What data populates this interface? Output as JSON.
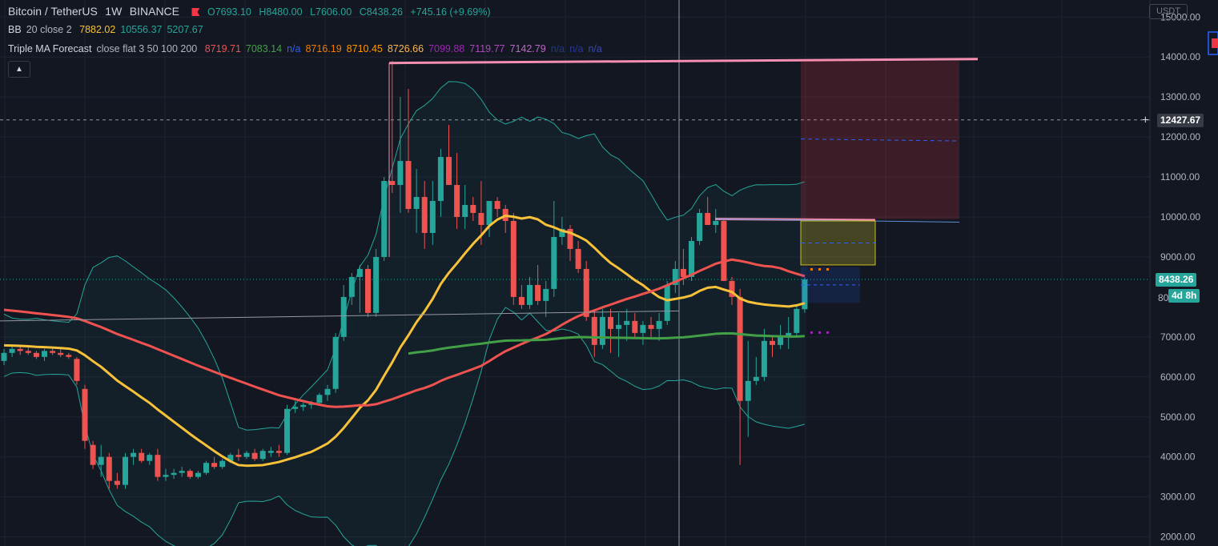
{
  "header": {
    "symbol": "Bitcoin / TetherUS",
    "interval": "1W",
    "exchange": "BINANCE",
    "open": "O7693.10",
    "high": "H8480.00",
    "low": "L7606.00",
    "close": "C8438.26",
    "change": "+745.16 (+9.69%)"
  },
  "indicators": {
    "bb": {
      "label": "BB",
      "params": "20 close 2",
      "values": [
        {
          "text": "7882.02",
          "color": "#f7c13a"
        },
        {
          "text": "10556.37",
          "color": "#26a69a"
        },
        {
          "text": "5207.67",
          "color": "#26a69a"
        }
      ]
    },
    "triple_ma": {
      "label": "Triple MA Forecast",
      "params": "close flat 3 50 100 200",
      "values": [
        {
          "text": "8719.71",
          "color": "#ef5350"
        },
        {
          "text": "7083.14",
          "color": "#43a047"
        },
        {
          "text": "n/a",
          "color": "#2962ff"
        },
        {
          "text": "8716.19",
          "color": "#f57c00"
        },
        {
          "text": "8710.45",
          "color": "#ff9800"
        },
        {
          "text": "8726.66",
          "color": "#ffb74d"
        },
        {
          "text": "7099.88",
          "color": "#9c27b0"
        },
        {
          "text": "7119.77",
          "color": "#ab47bc"
        },
        {
          "text": "7142.79",
          "color": "#ba68c8"
        },
        {
          "text": "n/a",
          "color": "#1e3a8a"
        },
        {
          "text": "n/a",
          "color": "#283593"
        },
        {
          "text": "n/a",
          "color": "#3949ab"
        }
      ]
    }
  },
  "collapse_icon": "chevron-up-icon",
  "price_axis": {
    "unit": "USDT",
    "ticks": [
      "15000.00",
      "14000.00",
      "13000.00",
      "12000.00",
      "11000.00",
      "10000.00",
      "9000.00",
      "7000.00",
      "6000.00",
      "5000.00",
      "4000.00",
      "3000.00",
      "2000.00"
    ],
    "crosshair_price": "12427.67",
    "last_price": "8438.26",
    "countdown": "4d 8h",
    "partial_tick": "80"
  },
  "colors": {
    "bg": "#131722",
    "up": "#26a69a",
    "down": "#ef5350",
    "bb_basis": "#f7c13a",
    "ma1": "#ef5350",
    "ma2": "#43a047",
    "trendline": "#f48fb1"
  },
  "chart_data": {
    "type": "candlestick",
    "interval": "1W",
    "y_axis_range": [
      2000,
      15000
    ],
    "candles": [
      [
        6400,
        6700,
        6300,
        6600
      ],
      [
        6600,
        6800,
        6500,
        6700
      ],
      [
        6700,
        6800,
        6550,
        6650
      ],
      [
        6650,
        6750,
        6550,
        6600
      ],
      [
        6600,
        6650,
        6450,
        6500
      ],
      [
        6500,
        6700,
        6400,
        6650
      ],
      [
        6650,
        6750,
        6550,
        6600
      ],
      [
        6600,
        6700,
        6500,
        6550
      ],
      [
        6550,
        6600,
        6450,
        6500
      ],
      [
        6450,
        6500,
        5800,
        5900
      ],
      [
        5700,
        5800,
        4200,
        4400
      ],
      [
        4300,
        4400,
        3700,
        3800
      ],
      [
        3800,
        4300,
        3500,
        4000
      ],
      [
        4000,
        4100,
        3200,
        3400
      ],
      [
        3400,
        3600,
        3200,
        3300
      ],
      [
        3300,
        4100,
        3200,
        4000
      ],
      [
        4000,
        4200,
        3800,
        4100
      ],
      [
        4100,
        4200,
        3850,
        3900
      ],
      [
        3900,
        4100,
        3800,
        4050
      ],
      [
        4050,
        4200,
        3400,
        3500
      ],
      [
        3500,
        3700,
        3400,
        3550
      ],
      [
        3550,
        3700,
        3450,
        3600
      ],
      [
        3600,
        3750,
        3500,
        3650
      ],
      [
        3650,
        3700,
        3450,
        3500
      ],
      [
        3500,
        3650,
        3450,
        3600
      ],
      [
        3600,
        3900,
        3550,
        3850
      ],
      [
        3850,
        4000,
        3700,
        3750
      ],
      [
        3750,
        3950,
        3700,
        3900
      ],
      [
        3900,
        4100,
        3850,
        4050
      ],
      [
        4050,
        4200,
        3900,
        4000
      ],
      [
        4000,
        4150,
        3950,
        4100
      ],
      [
        4100,
        4200,
        3900,
        3950
      ],
      [
        3950,
        4200,
        3900,
        4150
      ],
      [
        4100,
        4250,
        4000,
        4150
      ],
      [
        4150,
        4300,
        4000,
        4100
      ],
      [
        4100,
        5300,
        4050,
        5200
      ],
      [
        5200,
        5400,
        5100,
        5250
      ],
      [
        5250,
        5350,
        5150,
        5300
      ],
      [
        5300,
        5400,
        5200,
        5350
      ],
      [
        5350,
        5600,
        5300,
        5550
      ],
      [
        5550,
        5800,
        5400,
        5700
      ],
      [
        5700,
        7100,
        5600,
        7000
      ],
      [
        7000,
        8300,
        6900,
        8000
      ],
      [
        8000,
        8600,
        7800,
        8500
      ],
      [
        8500,
        8800,
        7600,
        8700
      ],
      [
        8700,
        8800,
        7500,
        7600
      ],
      [
        7600,
        9200,
        7500,
        9000
      ],
      [
        9000,
        11000,
        8900,
        10900
      ],
      [
        10900,
        13900,
        10600,
        10800
      ],
      [
        10800,
        13000,
        10100,
        11400
      ],
      [
        11400,
        13200,
        10100,
        10200
      ],
      [
        10200,
        11200,
        9600,
        10500
      ],
      [
        10500,
        10900,
        9200,
        9600
      ],
      [
        9600,
        10900,
        9300,
        10400
      ],
      [
        10400,
        11700,
        10000,
        11500
      ],
      [
        11500,
        12300,
        10800,
        10800
      ],
      [
        10800,
        11600,
        9700,
        10000
      ],
      [
        10000,
        10800,
        9700,
        10300
      ],
      [
        10300,
        10500,
        9900,
        10100
      ],
      [
        10100,
        10900,
        9300,
        9800
      ],
      [
        9800,
        10400,
        9500,
        10400
      ],
      [
        10400,
        10500,
        10000,
        10200
      ],
      [
        10200,
        10300,
        9600,
        9900
      ],
      [
        9900,
        10100,
        7800,
        8000
      ],
      [
        8000,
        8300,
        7700,
        7800
      ],
      [
        7800,
        8500,
        7700,
        8300
      ],
      [
        8300,
        8800,
        7800,
        7900
      ],
      [
        7900,
        8400,
        7500,
        8200
      ],
      [
        8200,
        10400,
        8000,
        9500
      ],
      [
        9500,
        10000,
        9300,
        9700
      ],
      [
        9700,
        9800,
        8900,
        9200
      ],
      [
        9200,
        9400,
        8600,
        8700
      ],
      [
        8700,
        8900,
        7400,
        7500
      ],
      [
        7500,
        7700,
        6500,
        6800
      ],
      [
        6800,
        7700,
        6700,
        7500
      ],
      [
        7500,
        7700,
        6600,
        7200
      ],
      [
        7200,
        7600,
        6500,
        7300
      ],
      [
        7300,
        7700,
        6900,
        7400
      ],
      [
        7400,
        7600,
        7000,
        7100
      ],
      [
        7100,
        7400,
        6800,
        7300
      ],
      [
        7300,
        7500,
        7000,
        7200
      ],
      [
        7200,
        7600,
        6900,
        7400
      ],
      [
        7400,
        8400,
        7300,
        8300
      ],
      [
        8300,
        8900,
        8100,
        8700
      ],
      [
        8700,
        9200,
        8300,
        8500
      ],
      [
        8500,
        9500,
        8400,
        9400
      ],
      [
        9400,
        10200,
        9300,
        10100
      ],
      [
        10100,
        10500,
        9800,
        9800
      ],
      [
        9800,
        10200,
        9600,
        9900
      ],
      [
        9900,
        9950,
        8400,
        8400
      ],
      [
        8400,
        8500,
        7800,
        8000
      ],
      [
        8000,
        8200,
        3800,
        5400
      ],
      [
        5400,
        6900,
        4500,
        5900
      ],
      [
        5900,
        6500,
        5800,
        6000
      ],
      [
        6000,
        7200,
        5900,
        6900
      ],
      [
        6900,
        7000,
        6500,
        6800
      ],
      [
        6800,
        7300,
        6700,
        7000
      ],
      [
        7000,
        7500,
        6700,
        7100
      ],
      [
        7100,
        7800,
        7000,
        7700
      ],
      [
        7693.1,
        8480,
        7606,
        8438.26
      ]
    ]
  }
}
